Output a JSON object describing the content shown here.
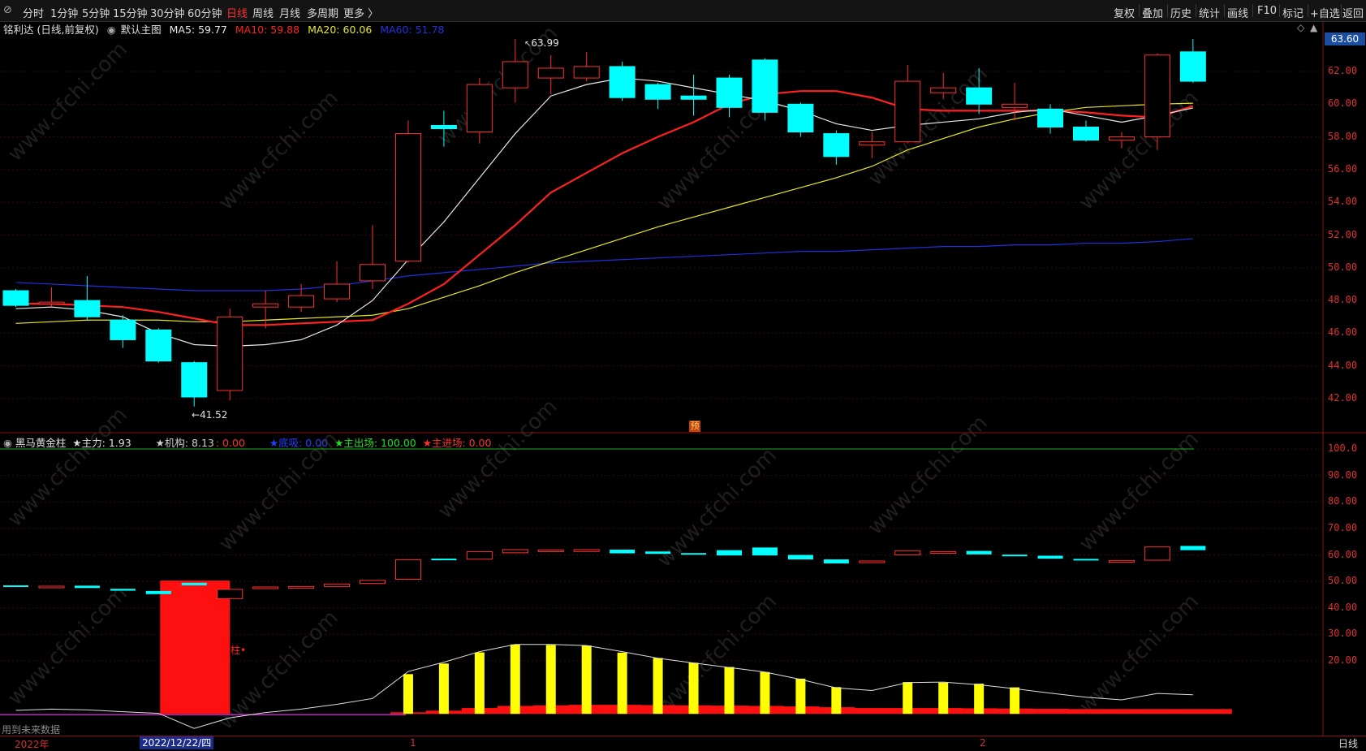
{
  "toolbar": {
    "left_tabs": [
      {
        "label": "分时",
        "active": false
      },
      {
        "label": "1分钟",
        "active": false
      },
      {
        "label": "5分钟",
        "active": false
      },
      {
        "label": "15分钟",
        "active": false
      },
      {
        "label": "30分钟",
        "active": false
      },
      {
        "label": "60分钟",
        "active": false
      },
      {
        "label": "日线",
        "active": true
      },
      {
        "label": "周线",
        "active": false
      },
      {
        "label": "月线",
        "active": false
      },
      {
        "label": "多周期",
        "active": false
      },
      {
        "label": "更多 〉",
        "active": false
      }
    ],
    "right_buttons": [
      "复权",
      "叠加",
      "历史",
      "统计",
      "画线",
      "F10",
      "标记",
      "+自选",
      "返回"
    ]
  },
  "main_info": {
    "stock": "铭利达 (日线,前复权)",
    "template": "默认主图",
    "ma5": "MA5: 59.77",
    "ma10": "MA10: 59.88",
    "ma20": "MA20: 60.06",
    "ma60": "MA60: 51.78"
  },
  "indicator_info": {
    "name": "黑马黄金柱",
    "zhuli": "★主力: 1.93",
    "jigou": "★机构: 8.13",
    "jigou_val": ": 0.00",
    "dixi": "★底吸: 0.00",
    "zhuchuchang": "★主出场: 100.00",
    "zhujinchang": "★主进场: 0.00"
  },
  "price_axis": [
    "62.00",
    "60.00",
    "58.00",
    "56.00",
    "54.00",
    "52.00",
    "50.00",
    "48.00",
    "46.00",
    "44.00",
    "42.00"
  ],
  "price_current": "63.60",
  "ind_axis": [
    "100.0",
    "90.00",
    "80.00",
    "70.00",
    "60.00",
    "50.00",
    "40.00",
    "30.00",
    "20.00"
  ],
  "annotations": {
    "high": "63.99",
    "low": "41.52",
    "pre": "预",
    "zhu": "柱"
  },
  "datebar": {
    "year": "2022年",
    "selected": "2022/12/22/四",
    "m1": "1",
    "m2": "2"
  },
  "bottom_right": "日线",
  "future_note": "用到未来数据",
  "colors": {
    "up": "#ff3030",
    "down": "#00ffff",
    "ma5": "#e8e8e8",
    "ma10": "#ff2020",
    "ma20": "#e8e820",
    "ma60": "#2030e0"
  },
  "chart_data": {
    "type": "candlestick",
    "price_range": [
      41,
      64.5
    ],
    "candles": [
      {
        "o": 48.6,
        "c": 47.7,
        "h": 48.7,
        "l": 47.6
      },
      {
        "o": 47.8,
        "c": 47.9,
        "h": 48.8,
        "l": 47.6
      },
      {
        "o": 48.0,
        "c": 47.0,
        "h": 49.5,
        "l": 46.8
      },
      {
        "o": 46.8,
        "c": 45.6,
        "h": 47.1,
        "l": 45.1
      },
      {
        "o": 46.2,
        "c": 44.3,
        "h": 46.3,
        "l": 44.2
      },
      {
        "o": 44.2,
        "c": 42.1,
        "h": 44.3,
        "l": 41.52
      },
      {
        "o": 42.5,
        "c": 47.0,
        "h": 47.5,
        "l": 41.9
      },
      {
        "o": 47.6,
        "c": 47.8,
        "h": 48.6,
        "l": 46.3
      },
      {
        "o": 47.6,
        "c": 48.3,
        "h": 49.0,
        "l": 47.3
      },
      {
        "o": 48.1,
        "c": 49.0,
        "h": 50.4,
        "l": 47.9
      },
      {
        "o": 49.2,
        "c": 50.2,
        "h": 52.6,
        "l": 48.7
      },
      {
        "o": 50.4,
        "c": 58.2,
        "h": 59.0,
        "l": 50.3
      },
      {
        "o": 58.7,
        "c": 58.5,
        "h": 59.6,
        "l": 57.4
      },
      {
        "o": 58.3,
        "c": 61.2,
        "h": 61.6,
        "l": 57.6
      },
      {
        "o": 61.0,
        "c": 62.6,
        "h": 63.99,
        "l": 60.1
      },
      {
        "o": 61.6,
        "c": 62.2,
        "h": 63.0,
        "l": 60.6
      },
      {
        "o": 61.6,
        "c": 62.3,
        "h": 63.2,
        "l": 61.4
      },
      {
        "o": 62.3,
        "c": 60.4,
        "h": 62.6,
        "l": 60.2
      },
      {
        "o": 61.2,
        "c": 60.3,
        "h": 61.3,
        "l": 59.7
      },
      {
        "o": 60.5,
        "c": 60.3,
        "h": 61.8,
        "l": 59.3
      },
      {
        "o": 61.6,
        "c": 59.8,
        "h": 61.8,
        "l": 59.2
      },
      {
        "o": 62.7,
        "c": 59.5,
        "h": 62.8,
        "l": 59.0
      },
      {
        "o": 60.0,
        "c": 58.3,
        "h": 60.1,
        "l": 58.0
      },
      {
        "o": 58.2,
        "c": 56.8,
        "h": 58.4,
        "l": 56.3
      },
      {
        "o": 57.5,
        "c": 57.7,
        "h": 58.3,
        "l": 56.7
      },
      {
        "o": 57.7,
        "c": 61.4,
        "h": 62.4,
        "l": 57.6
      },
      {
        "o": 60.7,
        "c": 61.0,
        "h": 61.9,
        "l": 60.3
      },
      {
        "o": 61.0,
        "c": 60.0,
        "h": 62.2,
        "l": 59.4
      },
      {
        "o": 59.8,
        "c": 60.0,
        "h": 61.3,
        "l": 59.0
      },
      {
        "o": 59.7,
        "c": 58.6,
        "h": 60.0,
        "l": 58.2
      },
      {
        "o": 58.6,
        "c": 57.8,
        "h": 59.0,
        "l": 57.7
      },
      {
        "o": 57.8,
        "c": 58.0,
        "h": 58.3,
        "l": 57.3
      },
      {
        "o": 58.0,
        "c": 63.0,
        "h": 63.1,
        "l": 57.2
      },
      {
        "o": 63.2,
        "c": 61.4,
        "h": 63.99,
        "l": 61.3
      }
    ],
    "ma5": [
      47.5,
      47.6,
      47.4,
      47.0,
      46.0,
      45.3,
      45.2,
      45.3,
      45.6,
      46.5,
      48.0,
      50.5,
      52.8,
      55.5,
      58.2,
      60.5,
      61.2,
      61.6,
      61.4,
      61.0,
      60.6,
      60.2,
      59.6,
      58.8,
      58.4,
      58.7,
      58.9,
      59.1,
      59.5,
      59.7,
      59.3,
      58.9,
      59.3,
      59.77
    ],
    "ma10": [
      47.8,
      47.8,
      47.7,
      47.6,
      47.3,
      46.9,
      46.5,
      46.5,
      46.6,
      46.7,
      46.8,
      47.8,
      49.0,
      50.8,
      52.6,
      54.6,
      55.8,
      57.0,
      58.0,
      58.9,
      60.0,
      60.6,
      60.8,
      60.8,
      60.4,
      59.7,
      59.6,
      59.6,
      59.6,
      59.6,
      59.5,
      59.3,
      59.2,
      59.88
    ],
    "ma20": [
      46.6,
      46.7,
      46.8,
      46.8,
      46.8,
      46.7,
      46.7,
      46.8,
      46.9,
      47.0,
      47.1,
      47.5,
      48.2,
      48.9,
      49.7,
      50.4,
      51.1,
      51.8,
      52.5,
      53.1,
      53.7,
      54.3,
      54.9,
      55.5,
      56.2,
      57.2,
      57.9,
      58.6,
      59.1,
      59.5,
      59.8,
      59.9,
      60.0,
      60.06
    ],
    "ma60": [
      49.1,
      49.0,
      48.9,
      48.8,
      48.7,
      48.6,
      48.6,
      48.6,
      48.7,
      48.9,
      49.2,
      49.5,
      49.7,
      49.9,
      50.1,
      50.3,
      50.4,
      50.5,
      50.6,
      50.7,
      50.8,
      50.9,
      51.0,
      51.0,
      51.1,
      51.2,
      51.3,
      51.3,
      51.4,
      51.4,
      51.5,
      51.5,
      51.6,
      51.78
    ],
    "indicator": {
      "range": [
        0,
        104
      ],
      "mini": [
        {
          "o": 48.5,
          "c": 48.3,
          "up": false
        },
        {
          "o": 48.2,
          "c": 48.0,
          "up": true
        },
        {
          "o": 48.4,
          "c": 47.5,
          "up": false
        },
        {
          "o": 47.2,
          "c": 46.5,
          "up": false
        },
        {
          "o": 46.4,
          "c": 45.2,
          "up": false
        },
        {
          "o": 49.5,
          "c": 48.5,
          "up": false
        },
        {
          "o": 43.5,
          "c": 47.0,
          "up": true
        },
        {
          "o": 47.6,
          "c": 47.9,
          "up": true
        },
        {
          "o": 47.5,
          "c": 48.1,
          "up": true
        },
        {
          "o": 48.1,
          "c": 49.0,
          "up": true
        },
        {
          "o": 49.2,
          "c": 50.4,
          "up": true
        },
        {
          "o": 50.8,
          "c": 58.2,
          "up": true
        },
        {
          "o": 58.6,
          "c": 58.4,
          "up": false
        },
        {
          "o": 58.4,
          "c": 61.2,
          "up": true
        },
        {
          "o": 60.8,
          "c": 62.0,
          "up": true
        },
        {
          "o": 61.2,
          "c": 61.9,
          "up": true
        },
        {
          "o": 61.3,
          "c": 62.0,
          "up": true
        },
        {
          "o": 62.0,
          "c": 60.6,
          "up": false
        },
        {
          "o": 61.3,
          "c": 60.4,
          "up": false
        },
        {
          "o": 60.7,
          "c": 60.4,
          "up": false
        },
        {
          "o": 61.8,
          "c": 59.8,
          "up": false
        },
        {
          "o": 62.8,
          "c": 59.8,
          "up": false
        },
        {
          "o": 60.0,
          "c": 58.3,
          "up": false
        },
        {
          "o": 58.3,
          "c": 56.8,
          "up": false
        },
        {
          "o": 57.4,
          "c": 57.7,
          "up": true
        },
        {
          "o": 60.0,
          "c": 61.6,
          "up": true
        },
        {
          "o": 60.7,
          "c": 61.2,
          "up": true
        },
        {
          "o": 61.5,
          "c": 60.2,
          "up": false
        },
        {
          "o": 60.1,
          "c": 59.9,
          "up": false
        },
        {
          "o": 59.7,
          "c": 58.6,
          "up": false
        },
        {
          "o": 58.5,
          "c": 57.9,
          "up": false
        },
        {
          "o": 57.8,
          "c": 57.9,
          "up": true
        },
        {
          "o": 58.0,
          "c": 63.0,
          "up": true
        },
        {
          "o": 63.4,
          "c": 61.8,
          "up": false
        }
      ],
      "big_red": {
        "index": 5,
        "top": 50.3,
        "bottom": 0
      },
      "yellow": [
        0,
        0,
        0,
        0,
        0,
        0,
        0,
        0,
        0,
        0,
        0,
        15,
        19,
        23.2,
        26.2,
        26.0,
        25.8,
        23.1,
        21.1,
        19.3,
        17.7,
        15.8,
        13.3,
        10.1,
        0,
        12.0,
        11.8,
        11.4,
        10.0,
        0,
        0,
        0,
        0,
        0
      ],
      "white": [
        1.3,
        1.8,
        1.5,
        0.8,
        0.2,
        -5.5,
        -1.5,
        0.5,
        1.8,
        3.6,
        5.8,
        16.0,
        19.5,
        23.5,
        26.2,
        26.2,
        25.8,
        23.5,
        21.0,
        19.2,
        17.5,
        15.8,
        13.0,
        9.8,
        8.8,
        11.8,
        12.0,
        11.0,
        9.5,
        7.8,
        6.3,
        5.3,
        7.7,
        7.2
      ],
      "red_floor": [
        0,
        0,
        0,
        0,
        0,
        0,
        0,
        0,
        0,
        0,
        0,
        0.6,
        1.2,
        2.2,
        3.0,
        3.2,
        3.4,
        3.4,
        3.3,
        3.2,
        3.1,
        3.0,
        2.8,
        2.5,
        2.2,
        2.2,
        2.2,
        2.1,
        2.0,
        1.9,
        1.8,
        1.8,
        1.8,
        1.8
      ],
      "green_level": 100
    }
  }
}
